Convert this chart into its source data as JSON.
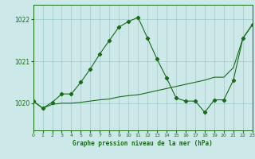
{
  "title": "Graphe pression niveau de la mer (hPa)",
  "bg_color": "#cce8e8",
  "grid_color": "#99cccc",
  "line_color": "#1a6b1a",
  "xlim": [
    0,
    23
  ],
  "ylim": [
    1019.35,
    1022.35
  ],
  "yticks": [
    1020,
    1021,
    1022
  ],
  "xticks": [
    0,
    1,
    2,
    3,
    4,
    5,
    6,
    7,
    8,
    9,
    10,
    11,
    12,
    13,
    14,
    15,
    16,
    17,
    18,
    19,
    20,
    21,
    22,
    23
  ],
  "wiggly_x": [
    0,
    1,
    2,
    3,
    4,
    5,
    6,
    7,
    8,
    9,
    10,
    11,
    12,
    13,
    14,
    15,
    16,
    17,
    18,
    19,
    20,
    21,
    22,
    23
  ],
  "wiggly_y": [
    1020.05,
    1019.88,
    1020.02,
    1020.22,
    1020.22,
    1020.5,
    1020.82,
    1021.18,
    1021.5,
    1021.82,
    1021.95,
    1022.05,
    1021.55,
    1021.05,
    1020.6,
    1020.12,
    1020.05,
    1020.05,
    1019.78,
    1020.08,
    1020.08,
    1020.55,
    1021.55,
    1021.88
  ],
  "trend_x": [
    0,
    1,
    2,
    3,
    4,
    5,
    6,
    7,
    8,
    9,
    10,
    11,
    12,
    13,
    14,
    15,
    16,
    17,
    18,
    19,
    20,
    21,
    22,
    23
  ],
  "trend_y": [
    1020.05,
    1019.88,
    1019.97,
    1020.0,
    1020.0,
    1020.02,
    1020.05,
    1020.08,
    1020.1,
    1020.15,
    1020.18,
    1020.2,
    1020.25,
    1020.3,
    1020.35,
    1020.4,
    1020.45,
    1020.5,
    1020.55,
    1020.62,
    1020.62,
    1020.85,
    1021.55,
    1021.88
  ]
}
